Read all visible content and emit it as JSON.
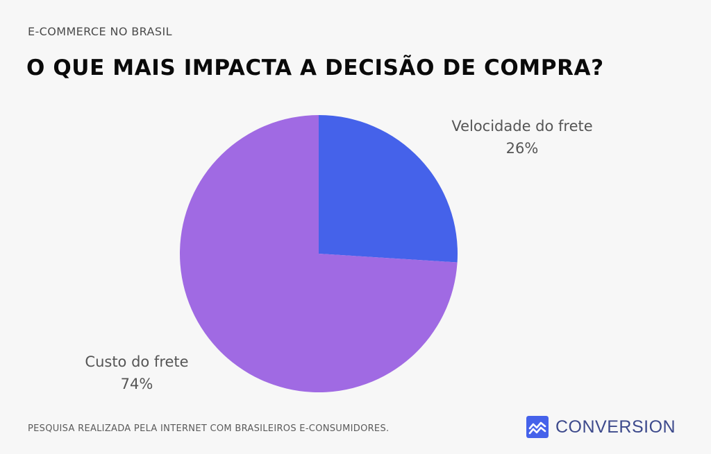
{
  "header": {
    "kicker": "E-COMMERCE NO BRASIL",
    "title": "O QUE MAIS IMPACTA A DECISÃO DE COMPRA?"
  },
  "chart_data": {
    "type": "pie",
    "slices": [
      {
        "label": "Velocidade do frete",
        "value": 26,
        "value_label": "26%",
        "color": "#4562ea"
      },
      {
        "label": "Custo do frete",
        "value": 74,
        "value_label": "74%",
        "color": "#a06ae3"
      }
    ],
    "start_angle": "12 o'clock",
    "direction": "clockwise",
    "legend": "none (direct labels)"
  },
  "footer": {
    "note": "PESQUISA REALIZADA PELA INTERNET COM BRASILEIROS E-CONSUMIDORES.",
    "brand": {
      "name": "CONVERSION",
      "icon": "trend-chart-icon",
      "color": "#4562ea",
      "text_color": "#3d4a8c"
    }
  },
  "colors": {
    "background": "#f7f7f7",
    "title": "#0a0a0a"
  }
}
